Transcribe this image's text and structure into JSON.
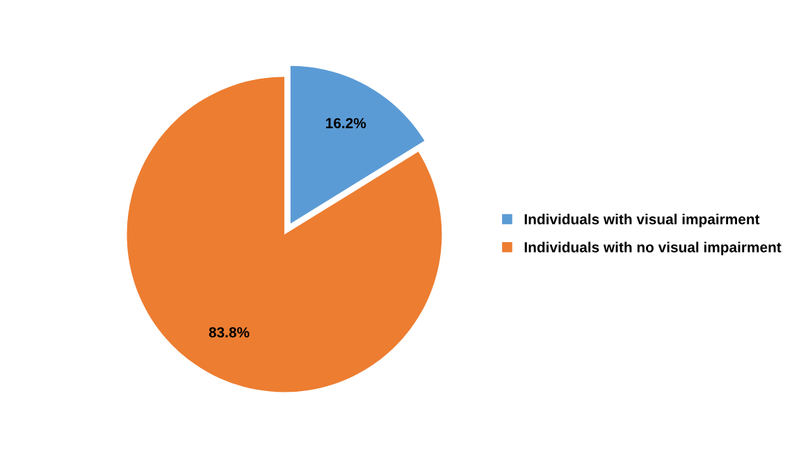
{
  "chart_data": {
    "type": "pie",
    "categories": [
      "Individuals with visual impairment",
      "Individuals with no visual impairment"
    ],
    "values": [
      16.2,
      83.8
    ],
    "colors": [
      "#5b9bd5",
      "#ed7d31"
    ],
    "value_labels": [
      "16.2%",
      "83.8%"
    ],
    "legend": "right"
  }
}
